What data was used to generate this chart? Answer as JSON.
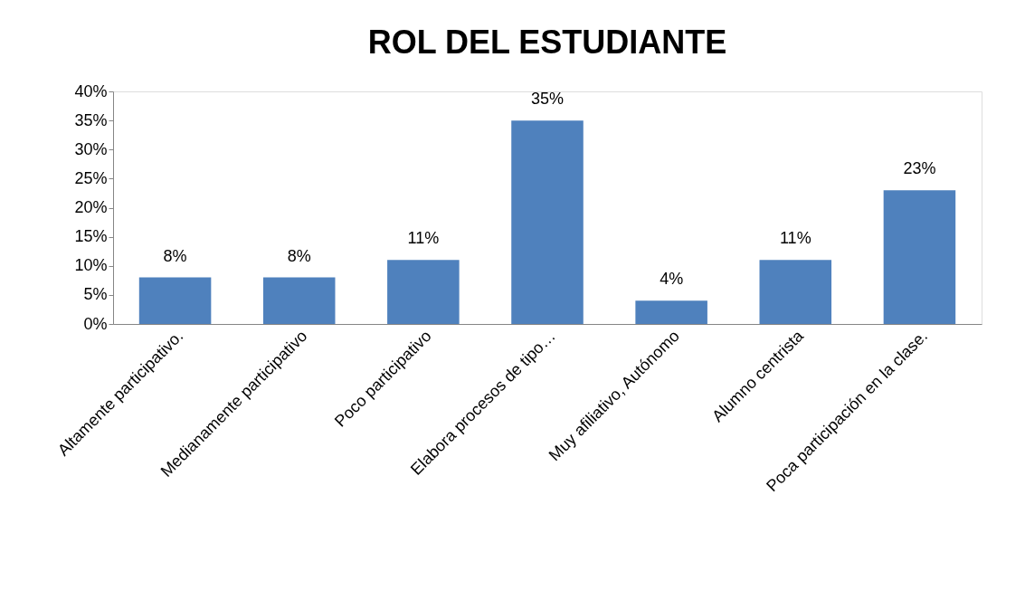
{
  "chart_data": {
    "type": "bar",
    "title": "ROL DEL ESTUDIANTE",
    "categories": [
      "Altamente participativo.",
      "Medianamente participativo",
      "Poco participativo",
      "Elabora procesos de tipo…",
      "Muy afiliativo, Autónomo",
      "Alumno centrista",
      "Poca participación en la clase."
    ],
    "values": [
      8,
      8,
      11,
      35,
      4,
      11,
      23
    ],
    "value_labels": [
      "8%",
      "8%",
      "11%",
      "35%",
      "4%",
      "11%",
      "23%"
    ],
    "color": "#4f81bd",
    "ylim": [
      0,
      40
    ],
    "yticks": [
      {
        "value": 0,
        "label": "0%"
      },
      {
        "value": 5,
        "label": "5%"
      },
      {
        "value": 10,
        "label": "10%"
      },
      {
        "value": 15,
        "label": "15%"
      },
      {
        "value": 20,
        "label": "20%"
      },
      {
        "value": 25,
        "label": "25%"
      },
      {
        "value": 30,
        "label": "30%"
      },
      {
        "value": 35,
        "label": "35%"
      },
      {
        "value": 40,
        "label": "40%"
      }
    ],
    "grid": false
  }
}
